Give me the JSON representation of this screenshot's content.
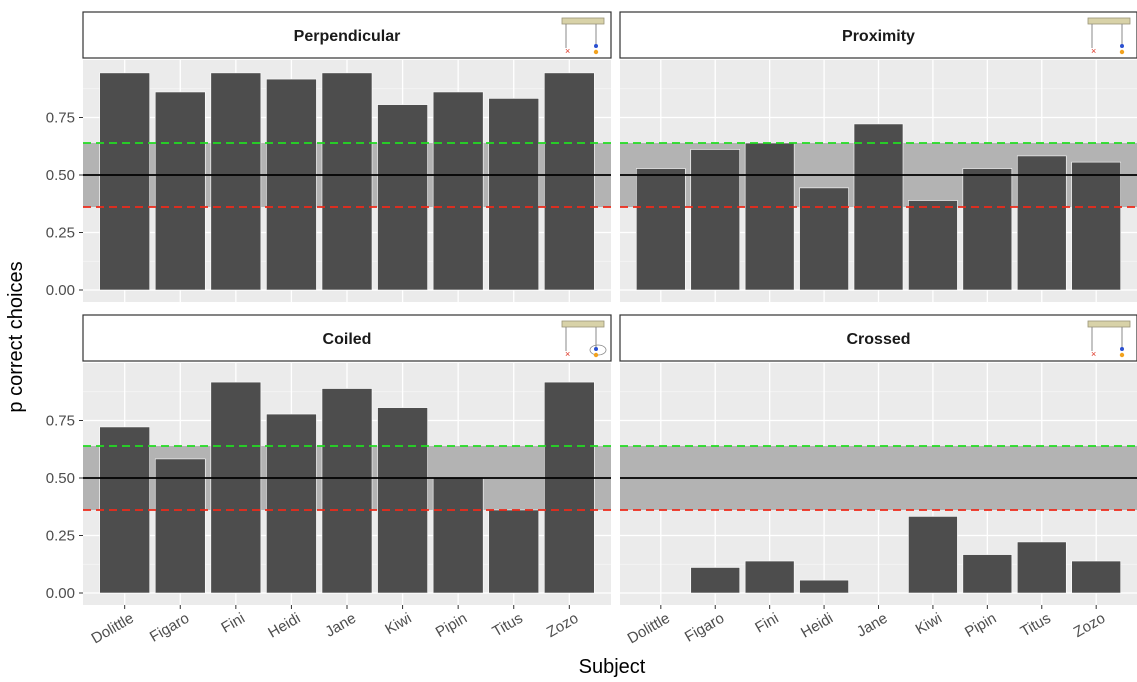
{
  "chart_data": [
    {
      "type": "bar",
      "facet": "Perpendicular",
      "categories": [
        "Dolittle",
        "Figaro",
        "Fini",
        "Heidi",
        "Jane",
        "Kiwi",
        "Pipin",
        "Titus",
        "Zozo"
      ],
      "values": [
        0.944,
        0.861,
        0.944,
        0.917,
        0.944,
        0.806,
        0.861,
        0.833,
        0.944
      ]
    },
    {
      "type": "bar",
      "facet": "Proximity",
      "categories": [
        "Dolittle",
        "Figaro",
        "Fini",
        "Heidi",
        "Jane",
        "Kiwi",
        "Pipin",
        "Titus",
        "Zozo"
      ],
      "values": [
        0.528,
        0.611,
        0.639,
        0.444,
        0.722,
        0.389,
        0.528,
        0.583,
        0.556
      ]
    },
    {
      "type": "bar",
      "facet": "Coiled",
      "categories": [
        "Dolittle",
        "Figaro",
        "Fini",
        "Heidi",
        "Jane",
        "Kiwi",
        "Pipin",
        "Titus",
        "Zozo"
      ],
      "values": [
        0.722,
        0.583,
        0.917,
        0.778,
        0.889,
        0.806,
        0.5,
        0.361,
        0.917
      ]
    },
    {
      "type": "bar",
      "facet": "Crossed",
      "categories": [
        "Dolittle",
        "Figaro",
        "Fini",
        "Heidi",
        "Jane",
        "Kiwi",
        "Pipin",
        "Titus",
        "Zozo"
      ],
      "values": [
        0,
        0.111,
        0.139,
        0.056,
        0,
        0.333,
        0.167,
        0.222,
        0.139
      ]
    }
  ],
  "axes": {
    "xlabel": "Subject",
    "ylabel": "p correct choices",
    "y_ticks": [
      "0.00",
      "0.25",
      "0.50",
      "0.75"
    ],
    "ylim": [
      0,
      1
    ]
  },
  "reference": {
    "chance": 0.5,
    "upper_threshold": 0.639,
    "lower_threshold": 0.361,
    "band_range": [
      0.361,
      0.639
    ]
  },
  "colors": {
    "bar": "#4d4d4d",
    "band": "#b3b3b3",
    "panel_background": "#ebebeb",
    "chance_line": "#000000",
    "upper_line": "#22dd22",
    "lower_line": "#ee2a1a"
  },
  "facet_icons": [
    "apparatus-perpendicular-icon",
    "apparatus-proximity-icon",
    "apparatus-coiled-icon",
    "apparatus-crossed-icon"
  ]
}
